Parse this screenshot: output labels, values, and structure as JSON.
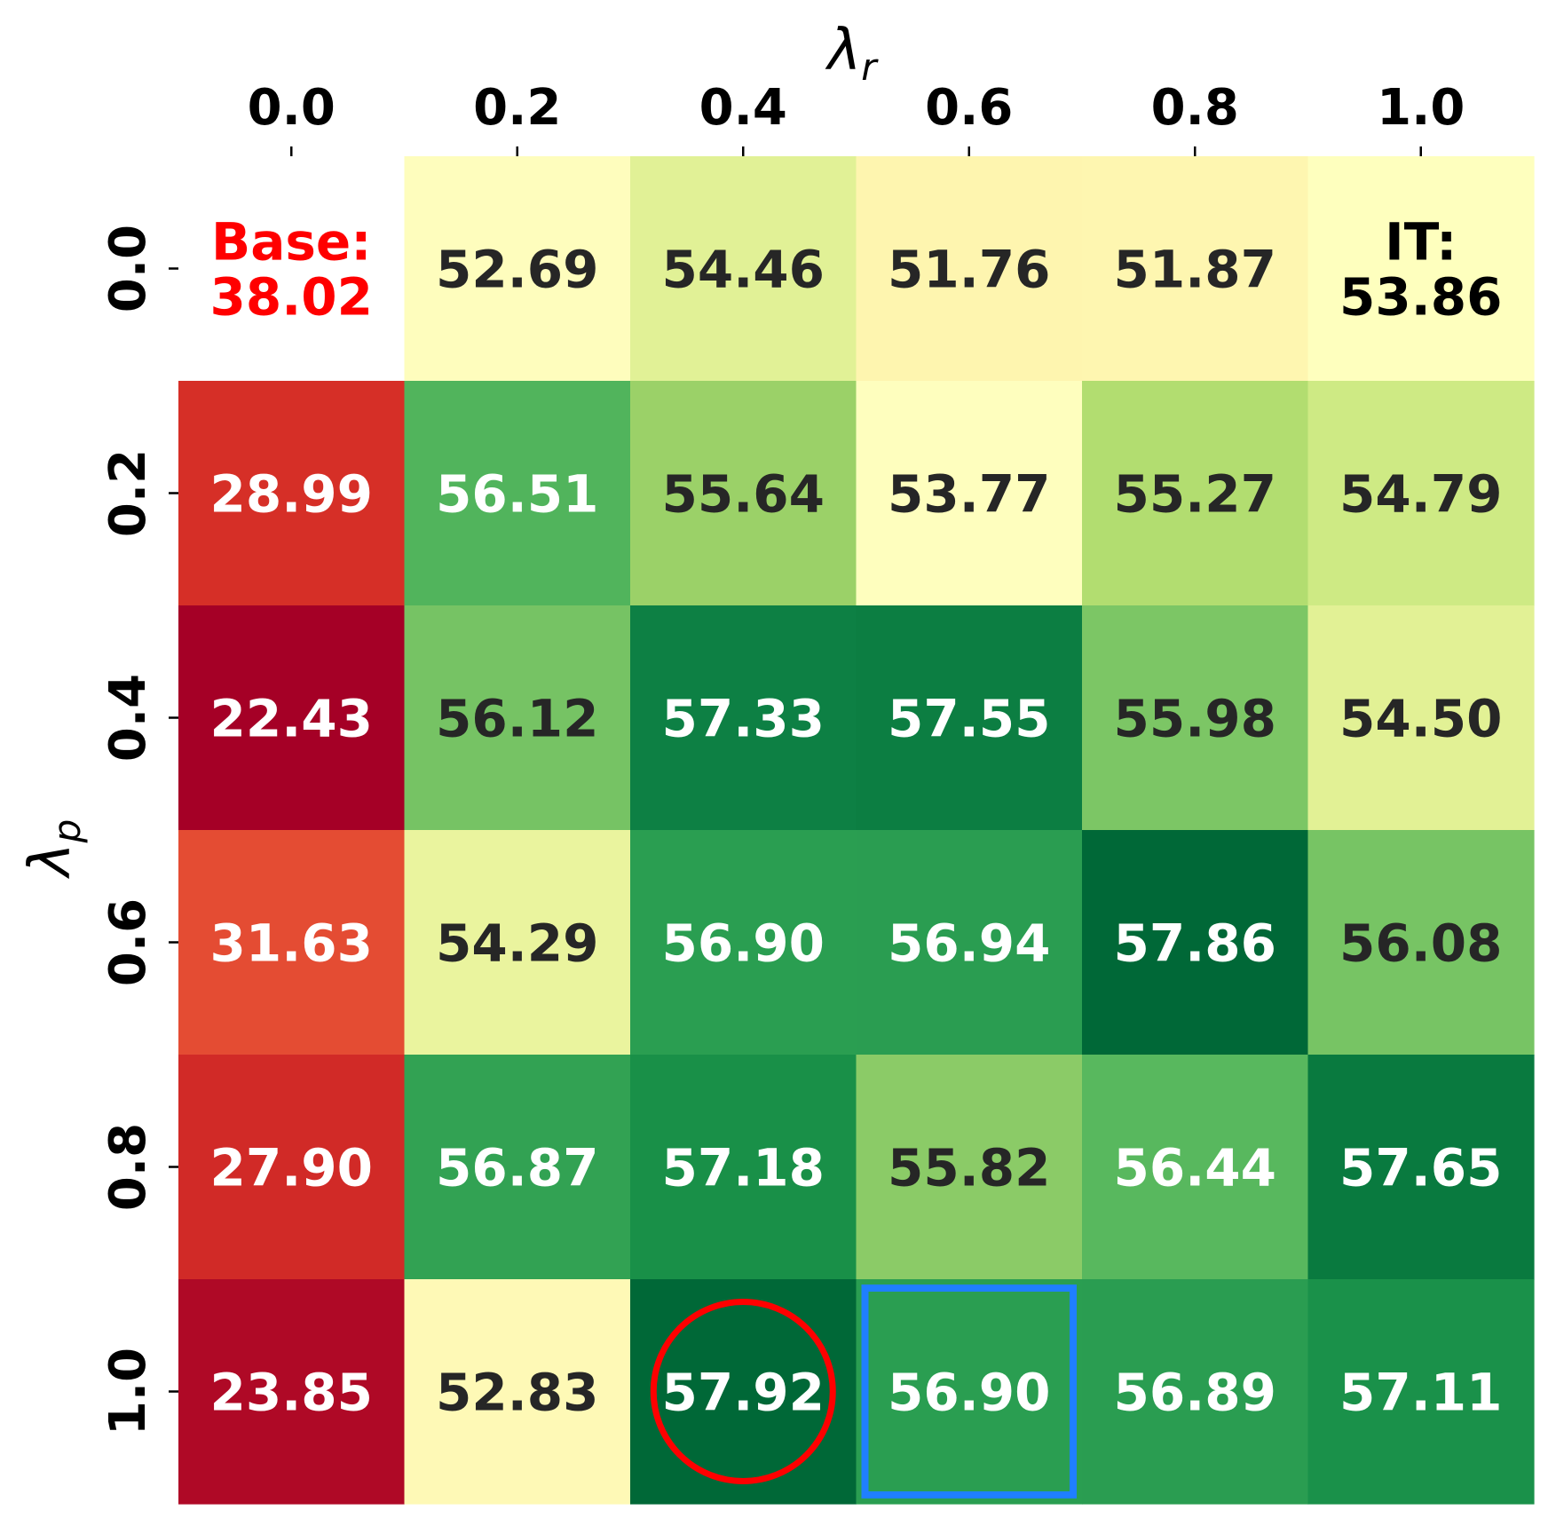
{
  "chart_data": {
    "type": "heatmap",
    "title": "",
    "xlabel": {
      "symbol": "λ",
      "subscript": "r"
    },
    "ylabel": {
      "symbol": "λ",
      "subscript": "p"
    },
    "x_ticks": [
      "0.0",
      "0.2",
      "0.4",
      "0.6",
      "0.8",
      "1.0"
    ],
    "y_ticks": [
      "0.0",
      "0.2",
      "0.4",
      "0.6",
      "0.8",
      "1.0"
    ],
    "x_axis_position": "top",
    "values": [
      [
        null,
        52.69,
        54.46,
        51.76,
        51.87,
        null
      ],
      [
        28.99,
        56.51,
        55.64,
        53.77,
        55.27,
        54.79
      ],
      [
        22.43,
        56.12,
        57.33,
        57.55,
        55.98,
        54.5
      ],
      [
        31.63,
        54.29,
        56.9,
        56.94,
        57.86,
        56.08
      ],
      [
        27.9,
        56.87,
        57.18,
        55.82,
        56.44,
        57.65
      ],
      [
        23.85,
        52.83,
        57.92,
        56.9,
        56.89,
        57.11
      ]
    ],
    "colors": [
      [
        null,
        "#FEFDBD",
        "#E1F196",
        "#FEF5AF",
        "#FEF6B0",
        "#FEFFBE"
      ],
      [
        "#D62F27",
        "#51B45C",
        "#9BD168",
        "#FEFEBE",
        "#B2DD70",
        "#CEEA84"
      ],
      [
        "#A50026",
        "#76C364",
        "#0D8044",
        "#0C7E42",
        "#7CC665",
        "#E2F195"
      ],
      [
        "#E44C33",
        "#EAF49E",
        "#2A9E51",
        "#2A9D51",
        "#006837",
        "#77C464"
      ],
      [
        "#D12A27",
        "#32A253",
        "#199048",
        "#8BCB67",
        "#58B85E",
        "#097A3F"
      ],
      [
        "#AF0926",
        "#FEF9B6",
        "#006837",
        "#2A9E51",
        "#2A9D51",
        "#1A914A"
      ]
    ],
    "text_colors": [
      [
        null,
        "#262626",
        "#262626",
        "#262626",
        "#262626",
        "#000000"
      ],
      [
        "#ffffff",
        "#ffffff",
        "#262626",
        "#262626",
        "#262626",
        "#262626"
      ],
      [
        "#ffffff",
        "#262626",
        "#ffffff",
        "#ffffff",
        "#262626",
        "#262626"
      ],
      [
        "#ffffff",
        "#262626",
        "#ffffff",
        "#ffffff",
        "#ffffff",
        "#262626"
      ],
      [
        "#ffffff",
        "#ffffff",
        "#ffffff",
        "#262626",
        "#ffffff",
        "#ffffff"
      ],
      [
        "#ffffff",
        "#262626",
        "#ffffff",
        "#ffffff",
        "#ffffff",
        "#ffffff"
      ]
    ],
    "special_cells": {
      "base": {
        "row": 0,
        "col": 0,
        "label": "Base:",
        "value": "38.02",
        "color": "#ff0000",
        "background": "#ffffff"
      },
      "it": {
        "row": 0,
        "col": 5,
        "label": "IT:",
        "value": "53.86",
        "color": "#000000"
      }
    },
    "highlights": {
      "circle": {
        "row": 5,
        "col": 2,
        "color": "#ff0000"
      },
      "box": {
        "row": 5,
        "col": 3,
        "color": "#1f7fff"
      }
    },
    "legend": "none",
    "grid": false
  }
}
